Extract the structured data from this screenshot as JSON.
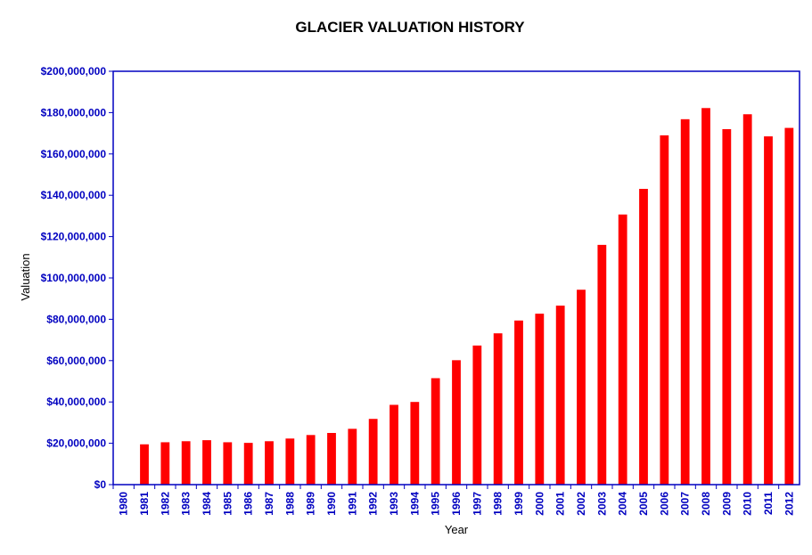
{
  "colors": {
    "bar": "#ff0000",
    "axis": "#0000c0",
    "tick_text": "#0000c0",
    "title_text": "#000000",
    "background": "#ffffff"
  },
  "chart_data": {
    "type": "bar",
    "title": "GLACIER VALUATION HISTORY",
    "xlabel": "Year",
    "ylabel": "Valuation",
    "ylim": [
      0,
      200000000
    ],
    "y_ticks": [
      "$0",
      "$20,000,000",
      "$40,000,000",
      "$60,000,000",
      "$80,000,000",
      "$100,000,000",
      "$120,000,000",
      "$140,000,000",
      "$160,000,000",
      "$180,000,000",
      "$200,000,000"
    ],
    "y_tick_values": [
      0,
      20000000,
      40000000,
      60000000,
      80000000,
      100000000,
      120000000,
      140000000,
      160000000,
      180000000,
      200000000
    ],
    "grid": false,
    "legend": "none",
    "categories": [
      "1980",
      "1981",
      "1982",
      "1983",
      "1984",
      "1985",
      "1986",
      "1987",
      "1988",
      "1989",
      "1990",
      "1991",
      "1992",
      "1993",
      "1994",
      "1995",
      "1996",
      "1997",
      "1998",
      "1999",
      "2000",
      "2001",
      "2002",
      "2003",
      "2004",
      "2005",
      "2006",
      "2007",
      "2008",
      "2009",
      "2010",
      "2011",
      "2012"
    ],
    "values": [
      0,
      19500000,
      20500000,
      21000000,
      21500000,
      20500000,
      20200000,
      21000000,
      22300000,
      24000000,
      25000000,
      27000000,
      31800000,
      38600000,
      40000000,
      51500000,
      60200000,
      67300000,
      73200000,
      79400000,
      82700000,
      86600000,
      94300000,
      116000000,
      130700000,
      143100000,
      169000000,
      176800000,
      182200000,
      172000000,
      179200000,
      168500000,
      172600000
    ]
  }
}
